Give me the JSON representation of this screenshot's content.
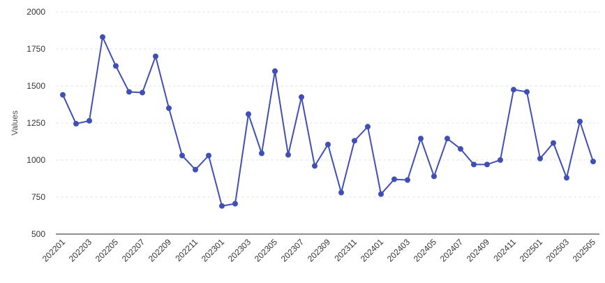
{
  "chart_data": {
    "type": "line",
    "title": "",
    "xlabel": "",
    "ylabel": "Values",
    "ylim": [
      500,
      2000
    ],
    "yticks": [
      500,
      750,
      1000,
      1250,
      1500,
      1750,
      2000
    ],
    "grid": true,
    "legend": "none",
    "x": [
      "202201",
      "202202",
      "202203",
      "202204",
      "202205",
      "202206",
      "202207",
      "202208",
      "202209",
      "202210",
      "202211",
      "202212",
      "202301",
      "202302",
      "202303",
      "202304",
      "202305",
      "202306",
      "202307",
      "202308",
      "202309",
      "202310",
      "202311",
      "202312",
      "202401",
      "202402",
      "202403",
      "202404",
      "202405",
      "202406",
      "202407",
      "202408",
      "202409",
      "202410",
      "202411",
      "202412",
      "202501",
      "202502",
      "202503",
      "202504",
      "202505"
    ],
    "xtick_labels": [
      "202201",
      "202203",
      "202205",
      "202207",
      "202209",
      "202211",
      "202301",
      "202303",
      "202305",
      "202307",
      "202309",
      "202311",
      "202401",
      "202403",
      "202405",
      "202407",
      "202409",
      "202411",
      "202501",
      "202503",
      "202505"
    ],
    "series": [
      {
        "color": "#3f4fb5",
        "values": [
          1440,
          1245,
          1265,
          1830,
          1635,
          1460,
          1455,
          1700,
          1350,
          1030,
          935,
          1030,
          690,
          705,
          1310,
          1045,
          1600,
          1035,
          1425,
          960,
          1105,
          780,
          1130,
          1225,
          770,
          870,
          865,
          1145,
          890,
          1145,
          1075,
          970,
          970,
          1000,
          1475,
          1460,
          1010,
          1115,
          880,
          1260,
          990
        ]
      }
    ]
  }
}
